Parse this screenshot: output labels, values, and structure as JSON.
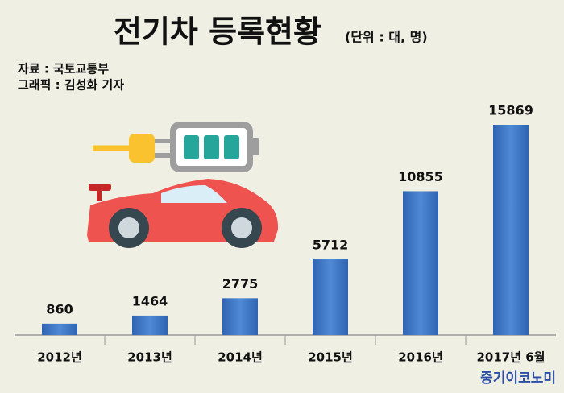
{
  "chart_data": {
    "type": "bar",
    "title": "전기차 등록현황",
    "unit": "(단위 : 대, 명)",
    "source": "자료 : 국토교통부",
    "credit": "그래픽 : 김성화 기자",
    "watermark": "중기이코노미",
    "categories": [
      "2012년",
      "2013년",
      "2014년",
      "2015년",
      "2016년",
      "2017년 6월"
    ],
    "values": [
      860,
      1464,
      2775,
      5712,
      10855,
      15869
    ],
    "color": "#3b76c6"
  }
}
